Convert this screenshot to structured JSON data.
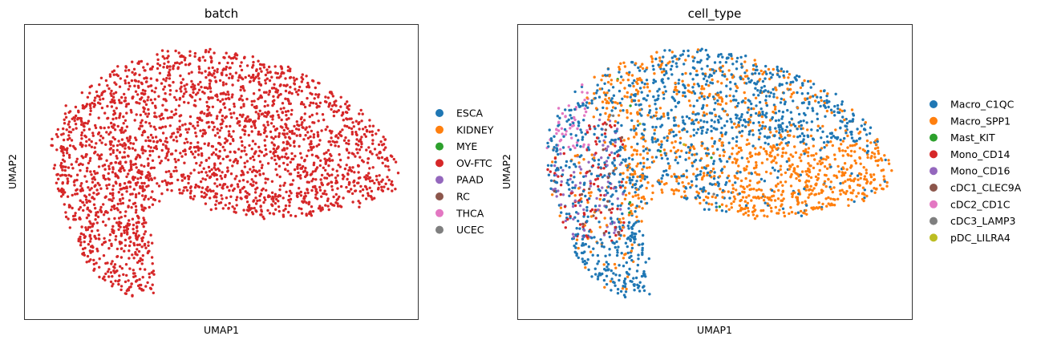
{
  "chart_data": [
    {
      "type": "scatter",
      "title": "batch",
      "xlabel": "UMAP1",
      "ylabel": "UMAP2",
      "xticks": "none",
      "yticks": "none",
      "grid": false,
      "legend_placement": "right",
      "legend": [
        {
          "label": "ESCA",
          "color": "#1f77b4"
        },
        {
          "label": "KIDNEY",
          "color": "#ff7f0e"
        },
        {
          "label": "MYE",
          "color": "#2ca02c"
        },
        {
          "label": "OV-FTC",
          "color": "#d62728"
        },
        {
          "label": "PAAD",
          "color": "#9467bd"
        },
        {
          "label": "RC",
          "color": "#8c564b"
        },
        {
          "label": "THCA",
          "color": "#e377c2"
        },
        {
          "label": "UCEC",
          "color": "#7f7f7f"
        }
      ],
      "series": [
        {
          "name": "OV-FTC",
          "color": "#d62728",
          "share": 1.0
        }
      ]
    },
    {
      "type": "scatter",
      "title": "cell_type",
      "xlabel": "UMAP1",
      "ylabel": "UMAP2",
      "xticks": "none",
      "yticks": "none",
      "grid": false,
      "legend_placement": "right",
      "legend": [
        {
          "label": "Macro_C1QC",
          "color": "#1f77b4"
        },
        {
          "label": "Macro_SPP1",
          "color": "#ff7f0e"
        },
        {
          "label": "Mast_KIT",
          "color": "#2ca02c"
        },
        {
          "label": "Mono_CD14",
          "color": "#d62728"
        },
        {
          "label": "Mono_CD16",
          "color": "#9467bd"
        },
        {
          "label": "cDC1_CLEC9A",
          "color": "#8c564b"
        },
        {
          "label": "cDC2_CD1C",
          "color": "#e377c2"
        },
        {
          "label": "cDC3_LAMP3",
          "color": "#7f7f7f"
        },
        {
          "label": "pDC_LILRA4",
          "color": "#bcbd22"
        }
      ],
      "series": [
        {
          "name": "Macro_C1QC",
          "color": "#1f77b4",
          "region": "upper and lower-left arm"
        },
        {
          "name": "Macro_SPP1",
          "color": "#ff7f0e",
          "region": "right lobe"
        },
        {
          "name": "Mast_KIT",
          "color": "#2ca02c",
          "region": "sparse"
        },
        {
          "name": "Mono_CD14",
          "color": "#d62728",
          "region": "left edge"
        },
        {
          "name": "Mono_CD16",
          "color": "#9467bd",
          "region": "left-center"
        },
        {
          "name": "cDC1_CLEC9A",
          "color": "#8c564b",
          "region": "sparse"
        },
        {
          "name": "cDC2_CD1C",
          "color": "#e377c2",
          "region": "upper-left tip"
        },
        {
          "name": "cDC3_LAMP3",
          "color": "#7f7f7f",
          "region": "sparse"
        },
        {
          "name": "pDC_LILRA4",
          "color": "#bcbd22",
          "region": "sparse"
        }
      ]
    }
  ]
}
